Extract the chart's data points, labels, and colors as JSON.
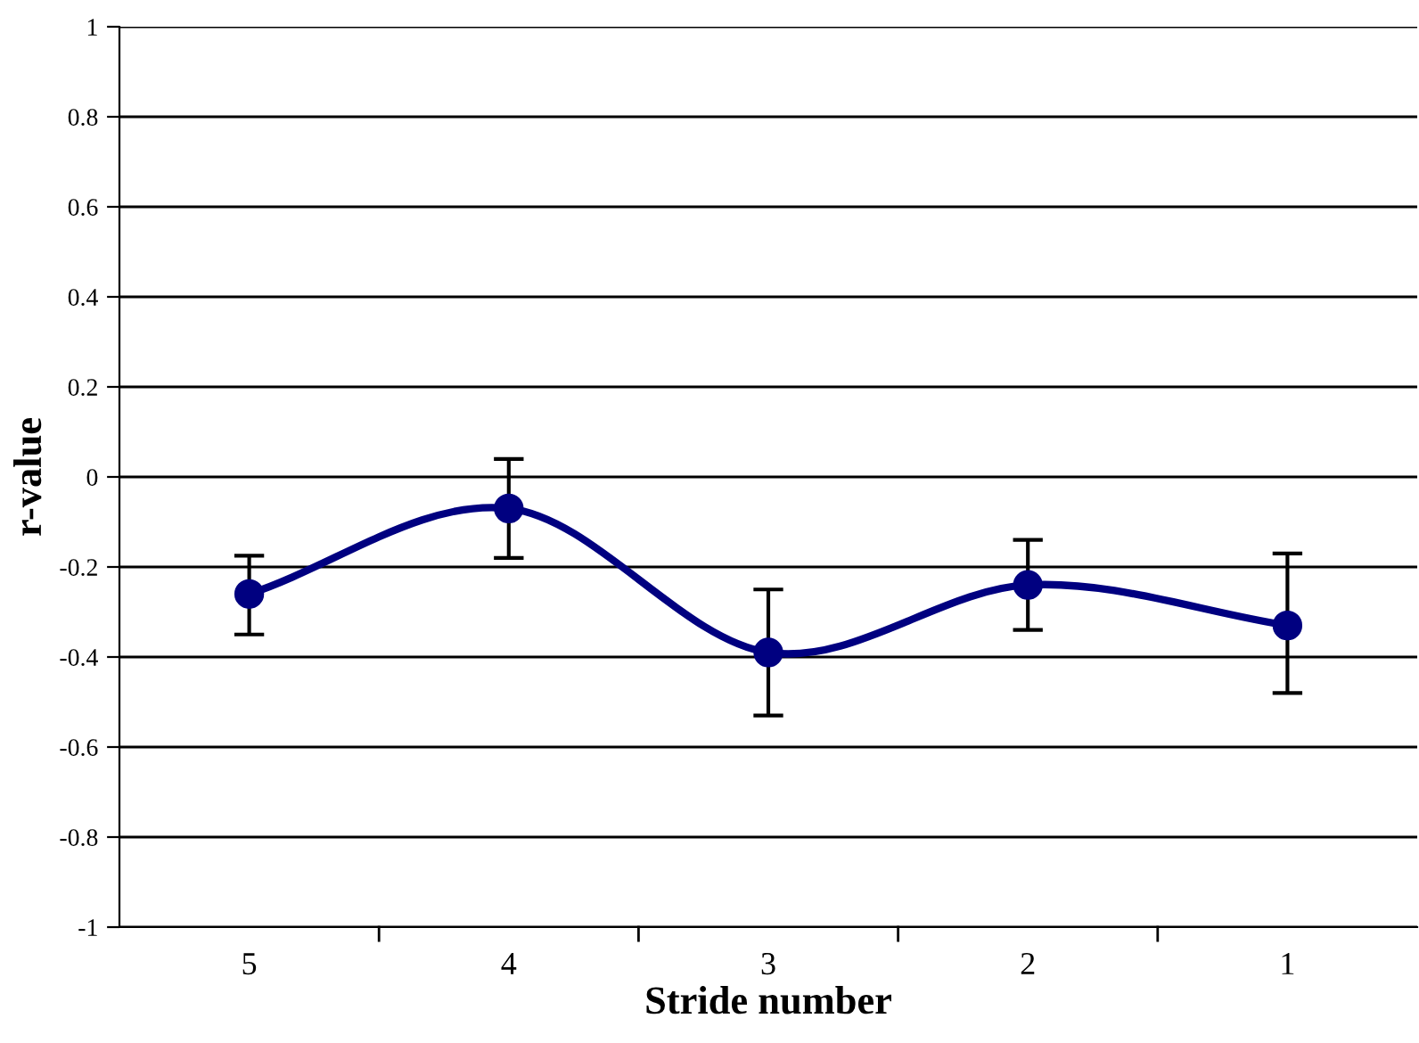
{
  "chart_data": {
    "type": "line",
    "xlabel": "Stride number",
    "ylabel": "r-value",
    "categories": [
      "5",
      "4",
      "3",
      "2",
      "1"
    ],
    "series": [
      {
        "color": "#000080",
        "values": [
          -0.26,
          -0.07,
          -0.39,
          -0.24,
          -0.33
        ],
        "errors": [
          [
            -0.35,
            -0.175
          ],
          [
            -0.18,
            0.04
          ],
          [
            -0.53,
            -0.25
          ],
          [
            -0.34,
            -0.14
          ],
          [
            -0.48,
            -0.17
          ]
        ]
      }
    ],
    "ylim": [
      -1,
      1
    ],
    "yticks": [
      -1,
      -0.8,
      -0.6,
      -0.4,
      -0.2,
      0,
      0.2,
      0.4,
      0.6,
      0.8,
      1
    ],
    "grid": "y",
    "marker": "circle",
    "line_style": "solid"
  }
}
